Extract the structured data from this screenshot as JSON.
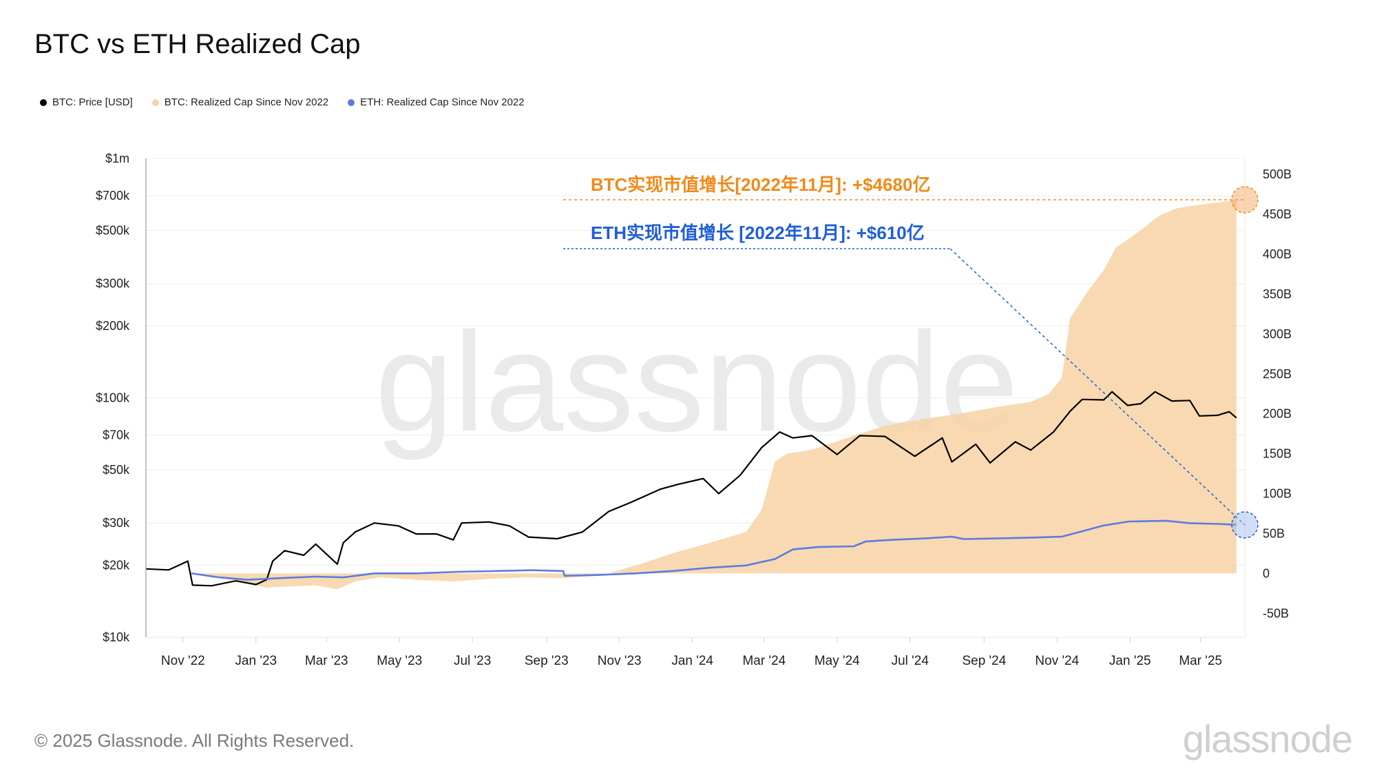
{
  "title": "BTC vs ETH Realized Cap",
  "legend": [
    {
      "label": "BTC: Price [USD]",
      "color": "#000000"
    },
    {
      "label": "BTC: Realized Cap Since Nov 2022",
      "color": "#f7d2a4"
    },
    {
      "label": "ETH: Realized Cap Since Nov 2022",
      "color": "#5b7be0"
    }
  ],
  "footer": {
    "copyright": "© 2025 Glassnode. All Rights Reserved.",
    "logo_text": "glassnode"
  },
  "watermark": "glassnode",
  "annotations": {
    "btc": {
      "text": "BTC实现市值增长[2022年11月]: +$4680亿",
      "color": "#f08a1a"
    },
    "eth": {
      "text": "ETH实现市值增长 [2022年11月]: +$610亿",
      "color": "#1f5ed8"
    }
  },
  "chart_data": {
    "type": "line",
    "title": "BTC vs ETH Realized Cap",
    "x_ticks": [
      "Nov '22",
      "Jan '23",
      "Mar '23",
      "May '23",
      "Jul '23",
      "Sep '23",
      "Nov '23",
      "Jan '24",
      "Mar '24",
      "May '24",
      "Jul '24",
      "Sep '24",
      "Nov '24",
      "Jan '25",
      "Mar '25"
    ],
    "y_left": {
      "scale": "log",
      "range": [
        10000,
        1000000
      ],
      "tick_values": [
        10000,
        20000,
        30000,
        50000,
        70000,
        100000,
        200000,
        300000,
        500000,
        700000,
        1000000
      ],
      "tick_labels": [
        "$10k",
        "$20k",
        "$30k",
        "$50k",
        "$70k",
        "$100k",
        "$200k",
        "$300k",
        "$500k",
        "$700k",
        "$1m"
      ]
    },
    "y_right": {
      "scale": "linear",
      "range": [
        -80,
        520
      ],
      "tick_values": [
        -50,
        0,
        50,
        100,
        150,
        200,
        250,
        300,
        350,
        400,
        450,
        500
      ],
      "tick_labels": [
        "-50B",
        "0",
        "50B",
        "100B",
        "150B",
        "200B",
        "250B",
        "300B",
        "350B",
        "400B",
        "450B",
        "500B"
      ]
    },
    "series": [
      {
        "name": "BTC: Price [USD]",
        "color": "#000000",
        "axis": "left",
        "points": [
          [
            "2022-10-01",
            19300
          ],
          [
            "2022-10-20",
            19100
          ],
          [
            "2022-11-05",
            20800
          ],
          [
            "2022-11-09",
            16500
          ],
          [
            "2022-11-25",
            16400
          ],
          [
            "2022-12-15",
            17200
          ],
          [
            "2023-01-01",
            16600
          ],
          [
            "2023-01-10",
            17400
          ],
          [
            "2023-01-15",
            20800
          ],
          [
            "2023-01-25",
            23000
          ],
          [
            "2023-02-10",
            22000
          ],
          [
            "2023-02-20",
            24500
          ],
          [
            "2023-03-10",
            20200
          ],
          [
            "2023-03-15",
            24800
          ],
          [
            "2023-03-25",
            27500
          ],
          [
            "2023-04-10",
            30000
          ],
          [
            "2023-04-30",
            29200
          ],
          [
            "2023-05-15",
            27000
          ],
          [
            "2023-06-01",
            27000
          ],
          [
            "2023-06-15",
            25500
          ],
          [
            "2023-06-22",
            30000
          ],
          [
            "2023-07-15",
            30300
          ],
          [
            "2023-08-01",
            29200
          ],
          [
            "2023-08-17",
            26200
          ],
          [
            "2023-09-10",
            25800
          ],
          [
            "2023-10-01",
            27500
          ],
          [
            "2023-10-23",
            33500
          ],
          [
            "2023-11-10",
            36500
          ],
          [
            "2023-12-05",
            41500
          ],
          [
            "2023-12-20",
            43500
          ],
          [
            "2024-01-10",
            46000
          ],
          [
            "2024-01-23",
            39800
          ],
          [
            "2024-02-10",
            47500
          ],
          [
            "2024-02-28",
            62000
          ],
          [
            "2024-03-14",
            72000
          ],
          [
            "2024-03-25",
            68000
          ],
          [
            "2024-04-10",
            69500
          ],
          [
            "2024-05-01",
            58000
          ],
          [
            "2024-05-20",
            69500
          ],
          [
            "2024-06-10",
            69000
          ],
          [
            "2024-07-05",
            57000
          ],
          [
            "2024-07-28",
            68000
          ],
          [
            "2024-08-05",
            54000
          ],
          [
            "2024-08-25",
            64000
          ],
          [
            "2024-09-06",
            53500
          ],
          [
            "2024-09-27",
            65500
          ],
          [
            "2024-10-10",
            60500
          ],
          [
            "2024-10-29",
            72000
          ],
          [
            "2024-11-12",
            88000
          ],
          [
            "2024-11-22",
            98500
          ],
          [
            "2024-12-10",
            98000
          ],
          [
            "2024-12-17",
            106000
          ],
          [
            "2024-12-30",
            93000
          ],
          [
            "2025-01-10",
            94500
          ],
          [
            "2025-01-22",
            106000
          ],
          [
            "2025-02-05",
            97000
          ],
          [
            "2025-02-20",
            97500
          ],
          [
            "2025-02-28",
            84000
          ],
          [
            "2025-03-15",
            84500
          ],
          [
            "2025-03-25",
            87500
          ],
          [
            "2025-03-31",
            82500
          ]
        ]
      },
      {
        "name": "BTC: Realized Cap Since Nov 2022",
        "color": "#f7d2a4",
        "axis": "right",
        "points": [
          [
            "2022-11-08",
            0
          ],
          [
            "2022-11-25",
            -4
          ],
          [
            "2022-12-20",
            -10
          ],
          [
            "2023-01-10",
            -18
          ],
          [
            "2023-01-20",
            -17
          ],
          [
            "2023-02-20",
            -15
          ],
          [
            "2023-03-10",
            -20
          ],
          [
            "2023-03-25",
            -10
          ],
          [
            "2023-04-15",
            -5
          ],
          [
            "2023-05-15",
            -8
          ],
          [
            "2023-06-15",
            -10
          ],
          [
            "2023-07-15",
            -7
          ],
          [
            "2023-08-15",
            -5
          ],
          [
            "2023-09-15",
            -6
          ],
          [
            "2023-10-15",
            -3
          ],
          [
            "2023-11-15",
            10
          ],
          [
            "2023-12-15",
            25
          ],
          [
            "2024-01-15",
            38
          ],
          [
            "2024-02-15",
            52
          ],
          [
            "2024-02-28",
            80
          ],
          [
            "2024-03-10",
            140
          ],
          [
            "2024-03-20",
            150
          ],
          [
            "2024-04-10",
            155
          ],
          [
            "2024-05-10",
            170
          ],
          [
            "2024-06-10",
            185
          ],
          [
            "2024-07-10",
            193
          ],
          [
            "2024-08-10",
            200
          ],
          [
            "2024-09-10",
            208
          ],
          [
            "2024-10-10",
            215
          ],
          [
            "2024-10-25",
            225
          ],
          [
            "2024-11-05",
            245
          ],
          [
            "2024-11-12",
            320
          ],
          [
            "2024-11-25",
            350
          ],
          [
            "2024-12-10",
            380
          ],
          [
            "2024-12-20",
            408
          ],
          [
            "2025-01-10",
            430
          ],
          [
            "2025-01-25",
            448
          ],
          [
            "2025-02-10",
            458
          ],
          [
            "2025-03-01",
            462
          ],
          [
            "2025-03-31",
            468
          ]
        ]
      },
      {
        "name": "ETH: Realized Cap Since Nov 2022",
        "color": "#5b7be0",
        "axis": "right",
        "points": [
          [
            "2022-11-08",
            0
          ],
          [
            "2022-12-01",
            -5
          ],
          [
            "2022-12-25",
            -8
          ],
          [
            "2023-01-20",
            -6
          ],
          [
            "2023-02-20",
            -4
          ],
          [
            "2023-03-15",
            -5
          ],
          [
            "2023-04-10",
            0
          ],
          [
            "2023-05-15",
            0
          ],
          [
            "2023-06-20",
            2
          ],
          [
            "2023-07-20",
            3
          ],
          [
            "2023-08-20",
            4
          ],
          [
            "2023-09-15",
            3
          ],
          [
            "2023-09-16",
            -3
          ],
          [
            "2023-10-15",
            -2
          ],
          [
            "2023-11-15",
            0
          ],
          [
            "2023-12-15",
            3
          ],
          [
            "2024-01-15",
            7
          ],
          [
            "2024-02-15",
            10
          ],
          [
            "2024-03-10",
            18
          ],
          [
            "2024-03-25",
            30
          ],
          [
            "2024-04-15",
            33
          ],
          [
            "2024-05-15",
            34
          ],
          [
            "2024-05-25",
            40
          ],
          [
            "2024-06-15",
            42
          ],
          [
            "2024-07-15",
            44
          ],
          [
            "2024-08-05",
            46
          ],
          [
            "2024-08-15",
            43
          ],
          [
            "2024-09-15",
            44
          ],
          [
            "2024-10-15",
            45
          ],
          [
            "2024-11-05",
            46
          ],
          [
            "2024-11-20",
            52
          ],
          [
            "2024-12-10",
            60
          ],
          [
            "2024-12-31",
            65
          ],
          [
            "2025-01-31",
            66
          ],
          [
            "2025-02-20",
            63
          ],
          [
            "2025-03-15",
            62
          ],
          [
            "2025-03-31",
            61
          ]
        ]
      }
    ]
  }
}
